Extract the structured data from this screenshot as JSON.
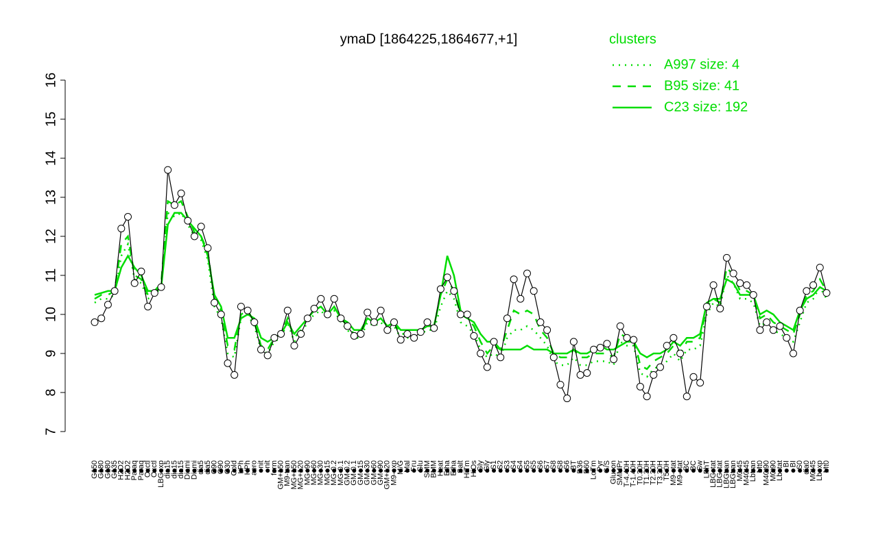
{
  "chart_data": {
    "type": "line",
    "title": "ymaD [1864225,1864677,+1]",
    "legend_title": "clusters",
    "legend": "top-right",
    "color": "#000000",
    "categories": [
      "G150",
      "G180",
      "G180",
      "G135",
      "H2O2",
      "H2O2",
      "Paraq",
      "Paraq",
      "Oxctl",
      "Oxctl",
      "LBGexp",
      "dia15",
      "dia15",
      "dia15",
      "Diami",
      "Diami",
      "dia5",
      "dia5",
      "C90",
      "C90",
      "C30",
      "Cold",
      "LPh",
      "HPh",
      "aero",
      "nit",
      "nit",
      "ferm",
      "GM+150",
      "M9-tran",
      "MG+150",
      "MG+120",
      "MG+90",
      "MG+60",
      "MG+30",
      "MG+15",
      "MG-0.2",
      "MG-0.1",
      "GM-0.2",
      "GM-0.1",
      "GM+15",
      "GM+30",
      "GM+60",
      "GM+90",
      "GM+120",
      "M9-exp",
      "M/G",
      "Mal",
      "Fru",
      "Glu",
      "SMM",
      "BMM",
      "Heat",
      "Etha",
      "Etha",
      "Salt",
      "HiTm",
      "HiOs",
      "Gly",
      "Gly",
      "S1",
      "S2",
      "S3",
      "S4",
      "S4",
      "S5",
      "S5",
      "S6",
      "S7",
      "S8",
      "S8",
      "S6",
      "BT",
      "B36",
      "B60",
      "LoTm",
      "Pyr",
      "G/S",
      "Glucon",
      "SMMPr",
      "T-4.40H",
      "T-1.40H",
      "T0.30H",
      "T1.30H",
      "T2.30H",
      "T3.30H",
      "T5.0H",
      "M9-stat",
      "M9-stat",
      "BC",
      "BC",
      "Sw",
      "LPhT",
      "LBGstat",
      "LBGstat",
      "LBGtran",
      "LBGtran",
      "M0t45",
      "M40t45",
      "Lbtran",
      "Mt0",
      "M40t90",
      "M0t90",
      "Lbstat",
      "BI",
      "BI",
      "S0",
      "dia0",
      "M0t45",
      "Lbexp",
      "Mt0"
    ],
    "values": [
      9.8,
      9.9,
      10.25,
      10.6,
      12.2,
      12.5,
      10.8,
      11.1,
      10.2,
      10.55,
      10.7,
      13.7,
      12.8,
      13.1,
      12.4,
      12.0,
      12.25,
      11.7,
      10.3,
      10.0,
      8.75,
      8.45,
      10.2,
      10.1,
      9.8,
      9.1,
      8.95,
      9.4,
      9.5,
      10.1,
      9.2,
      9.5,
      9.9,
      10.15,
      10.4,
      10.0,
      10.4,
      9.9,
      9.7,
      9.45,
      9.5,
      10.05,
      9.8,
      10.1,
      9.6,
      9.8,
      9.35,
      9.5,
      9.4,
      9.55,
      9.8,
      9.65,
      10.65,
      10.95,
      10.6,
      10.0,
      10.0,
      9.45,
      9.0,
      8.65,
      9.3,
      8.9,
      9.9,
      10.9,
      10.4,
      11.05,
      10.6,
      9.8,
      9.6,
      8.9,
      8.2,
      7.85,
      9.3,
      8.45,
      8.5,
      9.1,
      9.15,
      9.25,
      8.85,
      9.7,
      9.4,
      9.35,
      8.15,
      7.9,
      8.45,
      8.65,
      9.2,
      9.4,
      9.0,
      7.9,
      8.4,
      8.25,
      10.2,
      10.75,
      10.15,
      11.45,
      11.05,
      10.8,
      10.75,
      10.5,
      9.6,
      9.8,
      9.6,
      9.7,
      9.4,
      9.0,
      10.1,
      10.6,
      10.75,
      11.2,
      10.55
    ],
    "series": [
      {
        "name": "A997 size: 4",
        "color": "#00dd00",
        "dash": "dotted",
        "values": [
          10.3,
          10.4,
          10.4,
          10.5,
          11.5,
          11.8,
          10.9,
          10.8,
          10.4,
          10.5,
          10.7,
          12.6,
          12.5,
          12.6,
          12.3,
          12.0,
          11.9,
          11.4,
          10.2,
          9.9,
          9.0,
          8.9,
          9.9,
          10.0,
          9.7,
          9.1,
          9.0,
          9.3,
          9.4,
          9.8,
          9.3,
          9.5,
          9.8,
          10.0,
          10.1,
          9.9,
          10.1,
          9.8,
          9.6,
          9.4,
          9.4,
          9.8,
          9.7,
          9.8,
          9.6,
          9.7,
          9.4,
          9.4,
          9.4,
          9.5,
          9.6,
          9.6,
          10.2,
          10.6,
          10.4,
          9.8,
          9.7,
          9.5,
          9.1,
          8.9,
          9.0,
          8.9,
          9.4,
          9.6,
          9.6,
          9.7,
          9.6,
          9.4,
          9.2,
          8.8,
          8.7,
          8.7,
          8.9,
          8.7,
          8.7,
          8.8,
          8.8,
          8.8,
          8.7,
          9.3,
          9.2,
          9.2,
          8.5,
          8.4,
          8.6,
          8.7,
          8.8,
          9.0,
          8.8,
          9.1,
          9.1,
          9.2,
          10.0,
          10.3,
          10.2,
          11.0,
          10.8,
          10.4,
          10.4,
          10.3,
          9.7,
          9.8,
          9.6,
          9.5,
          9.4,
          9.3,
          9.8,
          10.3,
          10.4,
          10.7,
          10.4
        ]
      },
      {
        "name": "B95 size: 41",
        "color": "#00dd00",
        "dash": "dashed",
        "values": [
          10.4,
          10.5,
          10.5,
          10.6,
          11.8,
          12.0,
          11.0,
          10.9,
          10.5,
          10.6,
          10.8,
          12.9,
          12.8,
          12.9,
          12.5,
          12.1,
          12.0,
          11.6,
          10.4,
          10.1,
          9.2,
          9.1,
          10.0,
          10.1,
          9.8,
          9.2,
          9.1,
          9.4,
          9.5,
          9.9,
          9.4,
          9.6,
          9.9,
          10.1,
          10.2,
          10.0,
          10.2,
          9.9,
          9.7,
          9.5,
          9.5,
          9.9,
          9.8,
          9.9,
          9.7,
          9.8,
          9.5,
          9.5,
          9.5,
          9.6,
          9.7,
          9.7,
          10.5,
          10.9,
          10.6,
          10.0,
          9.9,
          9.7,
          9.3,
          9.0,
          9.2,
          9.1,
          9.6,
          10.1,
          10.0,
          10.1,
          10.0,
          9.6,
          9.4,
          9.0,
          8.9,
          8.9,
          9.1,
          8.9,
          8.9,
          9.0,
          9.0,
          9.0,
          8.9,
          9.5,
          9.4,
          9.4,
          8.7,
          8.6,
          8.8,
          8.9,
          9.0,
          9.2,
          9.0,
          9.3,
          9.3,
          9.4,
          10.2,
          10.4,
          10.3,
          11.2,
          11.0,
          10.6,
          10.6,
          10.5,
          9.9,
          10.0,
          9.8,
          9.7,
          9.6,
          9.5,
          10.0,
          10.5,
          10.6,
          10.9,
          10.6
        ]
      },
      {
        "name": "C23 size: 192",
        "color": "#00dd00",
        "dash": "solid",
        "values": [
          10.5,
          10.55,
          10.6,
          10.6,
          11.2,
          11.5,
          11.2,
          11.0,
          10.6,
          10.6,
          10.7,
          12.3,
          12.6,
          12.6,
          12.4,
          12.2,
          12.0,
          11.5,
          10.5,
          10.2,
          9.4,
          9.4,
          9.9,
          10.0,
          9.9,
          9.4,
          9.3,
          9.4,
          9.5,
          9.8,
          9.5,
          9.7,
          9.9,
          10.1,
          10.2,
          10.0,
          10.2,
          9.9,
          9.8,
          9.6,
          9.6,
          9.9,
          9.8,
          9.9,
          9.7,
          9.8,
          9.6,
          9.6,
          9.6,
          9.6,
          9.7,
          9.7,
          10.5,
          11.5,
          11.0,
          10.1,
          9.9,
          9.8,
          9.5,
          9.3,
          9.3,
          9.1,
          9.1,
          9.1,
          9.1,
          9.2,
          9.1,
          9.1,
          9.1,
          9.0,
          9.0,
          9.0,
          9.1,
          9.0,
          9.0,
          9.1,
          9.2,
          9.1,
          9.1,
          9.2,
          9.3,
          9.3,
          9.0,
          8.9,
          9.0,
          9.0,
          9.1,
          9.3,
          9.2,
          9.4,
          9.4,
          9.5,
          10.3,
          10.4,
          10.4,
          10.9,
          10.8,
          10.5,
          10.5,
          10.5,
          10.0,
          10.1,
          10.0,
          9.8,
          9.7,
          9.6,
          10.1,
          10.4,
          10.5,
          10.7,
          10.6
        ]
      }
    ],
    "ylim": [
      7,
      16
    ],
    "yticks": [
      7,
      8,
      9,
      10,
      11,
      12,
      13,
      14,
      15,
      16
    ]
  }
}
